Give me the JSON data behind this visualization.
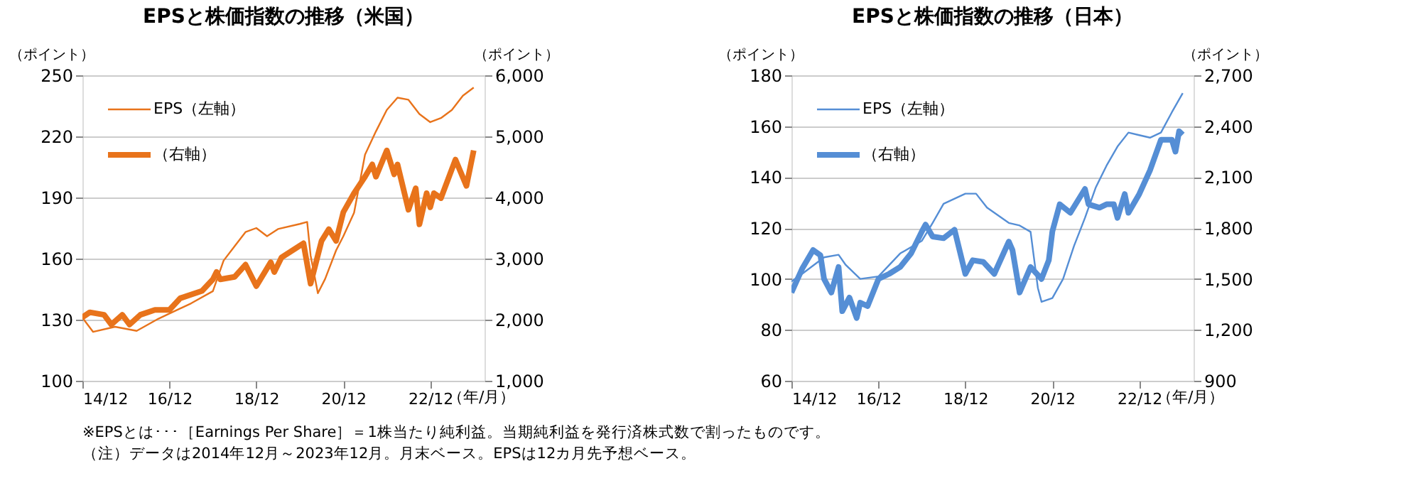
{
  "chart_data": [
    {
      "type": "line",
      "title": "EPSと株価指数の推移（米国）",
      "ylabel": "（ポイント）",
      "y2label": "（ポイント）",
      "xlabel": "（年/月）",
      "xlim": [
        "2014-12",
        "2024-03"
      ],
      "xticks": [
        {
          "value": "2014-12",
          "label": "14/12"
        },
        {
          "value": "2016-12",
          "label": "16/12"
        },
        {
          "value": "2018-12",
          "label": "18/12"
        },
        {
          "value": "2020-12",
          "label": "20/12"
        },
        {
          "value": "2022-12",
          "label": "22/12"
        }
      ],
      "ylim": [
        100,
        250
      ],
      "yticks": [
        100,
        130,
        160,
        190,
        220,
        250
      ],
      "y2lim": [
        1000,
        6000
      ],
      "y2ticks": [
        {
          "value": 1000,
          "label": "1,000"
        },
        {
          "value": 2000,
          "label": "2,000"
        },
        {
          "value": 3000,
          "label": "3,000"
        },
        {
          "value": 4000,
          "label": "4,000"
        },
        {
          "value": 5000,
          "label": "5,000"
        },
        {
          "value": 6000,
          "label": "6,000"
        }
      ],
      "grid": "y",
      "legend": "top left",
      "series": [
        {
          "name": "EPS（左軸）",
          "color": "#e8731b",
          "axis": "y",
          "x": [
            "2014-12",
            "2015-03",
            "2015-09",
            "2016-03",
            "2016-09",
            "2016-12",
            "2017-06",
            "2017-12",
            "2018-03",
            "2018-06",
            "2018-09",
            "2018-12",
            "2019-03",
            "2019-06",
            "2019-12",
            "2020-02",
            "2020-03",
            "2020-05",
            "2020-07",
            "2020-10",
            "2020-12",
            "2021-03",
            "2021-06",
            "2021-09",
            "2021-12",
            "2022-03",
            "2022-06",
            "2022-09",
            "2022-12",
            "2023-03",
            "2023-06",
            "2023-09",
            "2023-12"
          ],
          "values": [
            131,
            124,
            126.5,
            124.5,
            130.5,
            133,
            138,
            144,
            159,
            166,
            173,
            175,
            171,
            174.5,
            177,
            178,
            161.5,
            143,
            150,
            164,
            171,
            182.5,
            211,
            222.5,
            233,
            239,
            238,
            231,
            227,
            229,
            233,
            240,
            244
          ]
        },
        {
          "name": "（右軸）",
          "color": "#e8731b",
          "axis": "y2",
          "x": [
            "2014-12",
            "2015-02",
            "2015-06",
            "2015-08",
            "2015-11",
            "2016-01",
            "2016-04",
            "2016-08",
            "2016-12",
            "2017-03",
            "2017-09",
            "2017-12",
            "2018-01",
            "2018-02",
            "2018-06",
            "2018-09",
            "2018-12",
            "2019-04",
            "2019-05",
            "2019-07",
            "2019-12",
            "2020-01",
            "2020-03",
            "2020-06",
            "2020-08",
            "2020-10",
            "2020-12",
            "2021-03",
            "2021-06",
            "2021-08",
            "2021-09",
            "2021-12",
            "2022-02",
            "2022-03",
            "2022-06",
            "2022-08",
            "2022-09",
            "2022-11",
            "2022-12",
            "2023-01",
            "2023-03",
            "2023-07",
            "2023-10",
            "2023-12"
          ],
          "values": [
            2040,
            2120,
            2080,
            1920,
            2080,
            1920,
            2080,
            2160,
            2160,
            2350,
            2470,
            2660,
            2780,
            2660,
            2700,
            2900,
            2550,
            2940,
            2780,
            3020,
            3210,
            3250,
            2590,
            3290,
            3480,
            3290,
            3760,
            4070,
            4340,
            4540,
            4340,
            4770,
            4380,
            4540,
            3800,
            4150,
            3560,
            4070,
            3840,
            4070,
            3990,
            4620,
            4190,
            4770
          ]
        }
      ],
      "annotations": [
        "※EPSとは･･･［Earnings Per Share］＝1株当たり純利益。当期純利益を発行済株式数で割ったものです。",
        "（注）データは2014年12月～2023年12月。月末ベース。EPSは12カ月先予想ベース。"
      ]
    },
    {
      "type": "line",
      "title": "EPSと株価指数の推移（日本）",
      "ylabel": "（ポイント）",
      "y2label": "（ポイント）",
      "xlabel": "（年/月）",
      "xlim": [
        "2014-12",
        "2024-03"
      ],
      "xticks": [
        {
          "value": "2014-12",
          "label": "14/12"
        },
        {
          "value": "2016-12",
          "label": "16/12"
        },
        {
          "value": "2018-12",
          "label": "18/12"
        },
        {
          "value": "2020-12",
          "label": "20/12"
        },
        {
          "value": "2022-12",
          "label": "22/12"
        }
      ],
      "ylim": [
        60,
        180
      ],
      "yticks": [
        60,
        80,
        100,
        120,
        140,
        160,
        180
      ],
      "y2lim": [
        900,
        2700
      ],
      "y2ticks": [
        900,
        {
          "value": 1200,
          "label": "1,200"
        },
        {
          "value": 1500,
          "label": "1,500"
        },
        {
          "value": 1800,
          "label": "1,800"
        },
        {
          "value": 2100,
          "label": "2,100"
        },
        {
          "value": 2400,
          "label": "2,400"
        },
        {
          "value": 2700,
          "label": "2,700"
        }
      ],
      "grid": "y",
      "legend": "top left",
      "series": [
        {
          "name": "EPS（左軸）",
          "color": "#558ed5",
          "axis": "y",
          "x": [
            "2014-12",
            "2015-03",
            "2015-09",
            "2016-01",
            "2016-03",
            "2016-07",
            "2016-12",
            "2017-06",
            "2017-12",
            "2018-03",
            "2018-06",
            "2018-12",
            "2019-03",
            "2019-06",
            "2019-12",
            "2020-03",
            "2020-06",
            "2020-08",
            "2020-09",
            "2020-12",
            "2021-03",
            "2021-06",
            "2021-09",
            "2021-12",
            "2022-03",
            "2022-06",
            "2022-09",
            "2022-12",
            "2023-03",
            "2023-06",
            "2023-09",
            "2023-12"
          ],
          "values": [
            99,
            102,
            108.5,
            109.5,
            105.5,
            100,
            101,
            110,
            115,
            122,
            129.5,
            133.5,
            133.5,
            128,
            122,
            121,
            118.5,
            96.5,
            91,
            92.5,
            100,
            113,
            124,
            136,
            144.5,
            152,
            157.5,
            156.5,
            155.5,
            157.5,
            165.5,
            173
          ]
        },
        {
          "name": "（右軸）",
          "color": "#558ed5",
          "axis": "y2",
          "x": [
            "2014-12",
            "2015-03",
            "2015-06",
            "2015-08",
            "2015-09",
            "2015-11",
            "2016-01",
            "2016-02",
            "2016-04",
            "2016-06",
            "2016-07",
            "2016-09",
            "2016-12",
            "2017-03",
            "2017-06",
            "2017-09",
            "2017-12",
            "2018-01",
            "2018-03",
            "2018-06",
            "2018-09",
            "2018-12",
            "2019-02",
            "2019-05",
            "2019-08",
            "2019-12",
            "2020-01",
            "2020-03",
            "2020-06",
            "2020-09",
            "2020-11",
            "2020-12",
            "2021-02",
            "2021-05",
            "2021-09",
            "2021-10",
            "2022-01",
            "2022-03",
            "2022-05",
            "2022-06",
            "2022-08",
            "2022-09",
            "2022-12",
            "2023-03",
            "2023-06",
            "2023-09",
            "2023-10",
            "2023-11",
            "2023-12"
          ],
          "values": [
            1420,
            1560,
            1670,
            1640,
            1500,
            1420,
            1570,
            1310,
            1390,
            1270,
            1360,
            1340,
            1500,
            1530,
            1570,
            1650,
            1780,
            1820,
            1750,
            1740,
            1790,
            1530,
            1610,
            1600,
            1530,
            1720,
            1670,
            1420,
            1570,
            1500,
            1610,
            1780,
            1940,
            1890,
            2030,
            1940,
            1920,
            1940,
            1940,
            1860,
            2000,
            1890,
            2000,
            2140,
            2320,
            2320,
            2250,
            2370,
            2350
          ]
        }
      ]
    }
  ]
}
